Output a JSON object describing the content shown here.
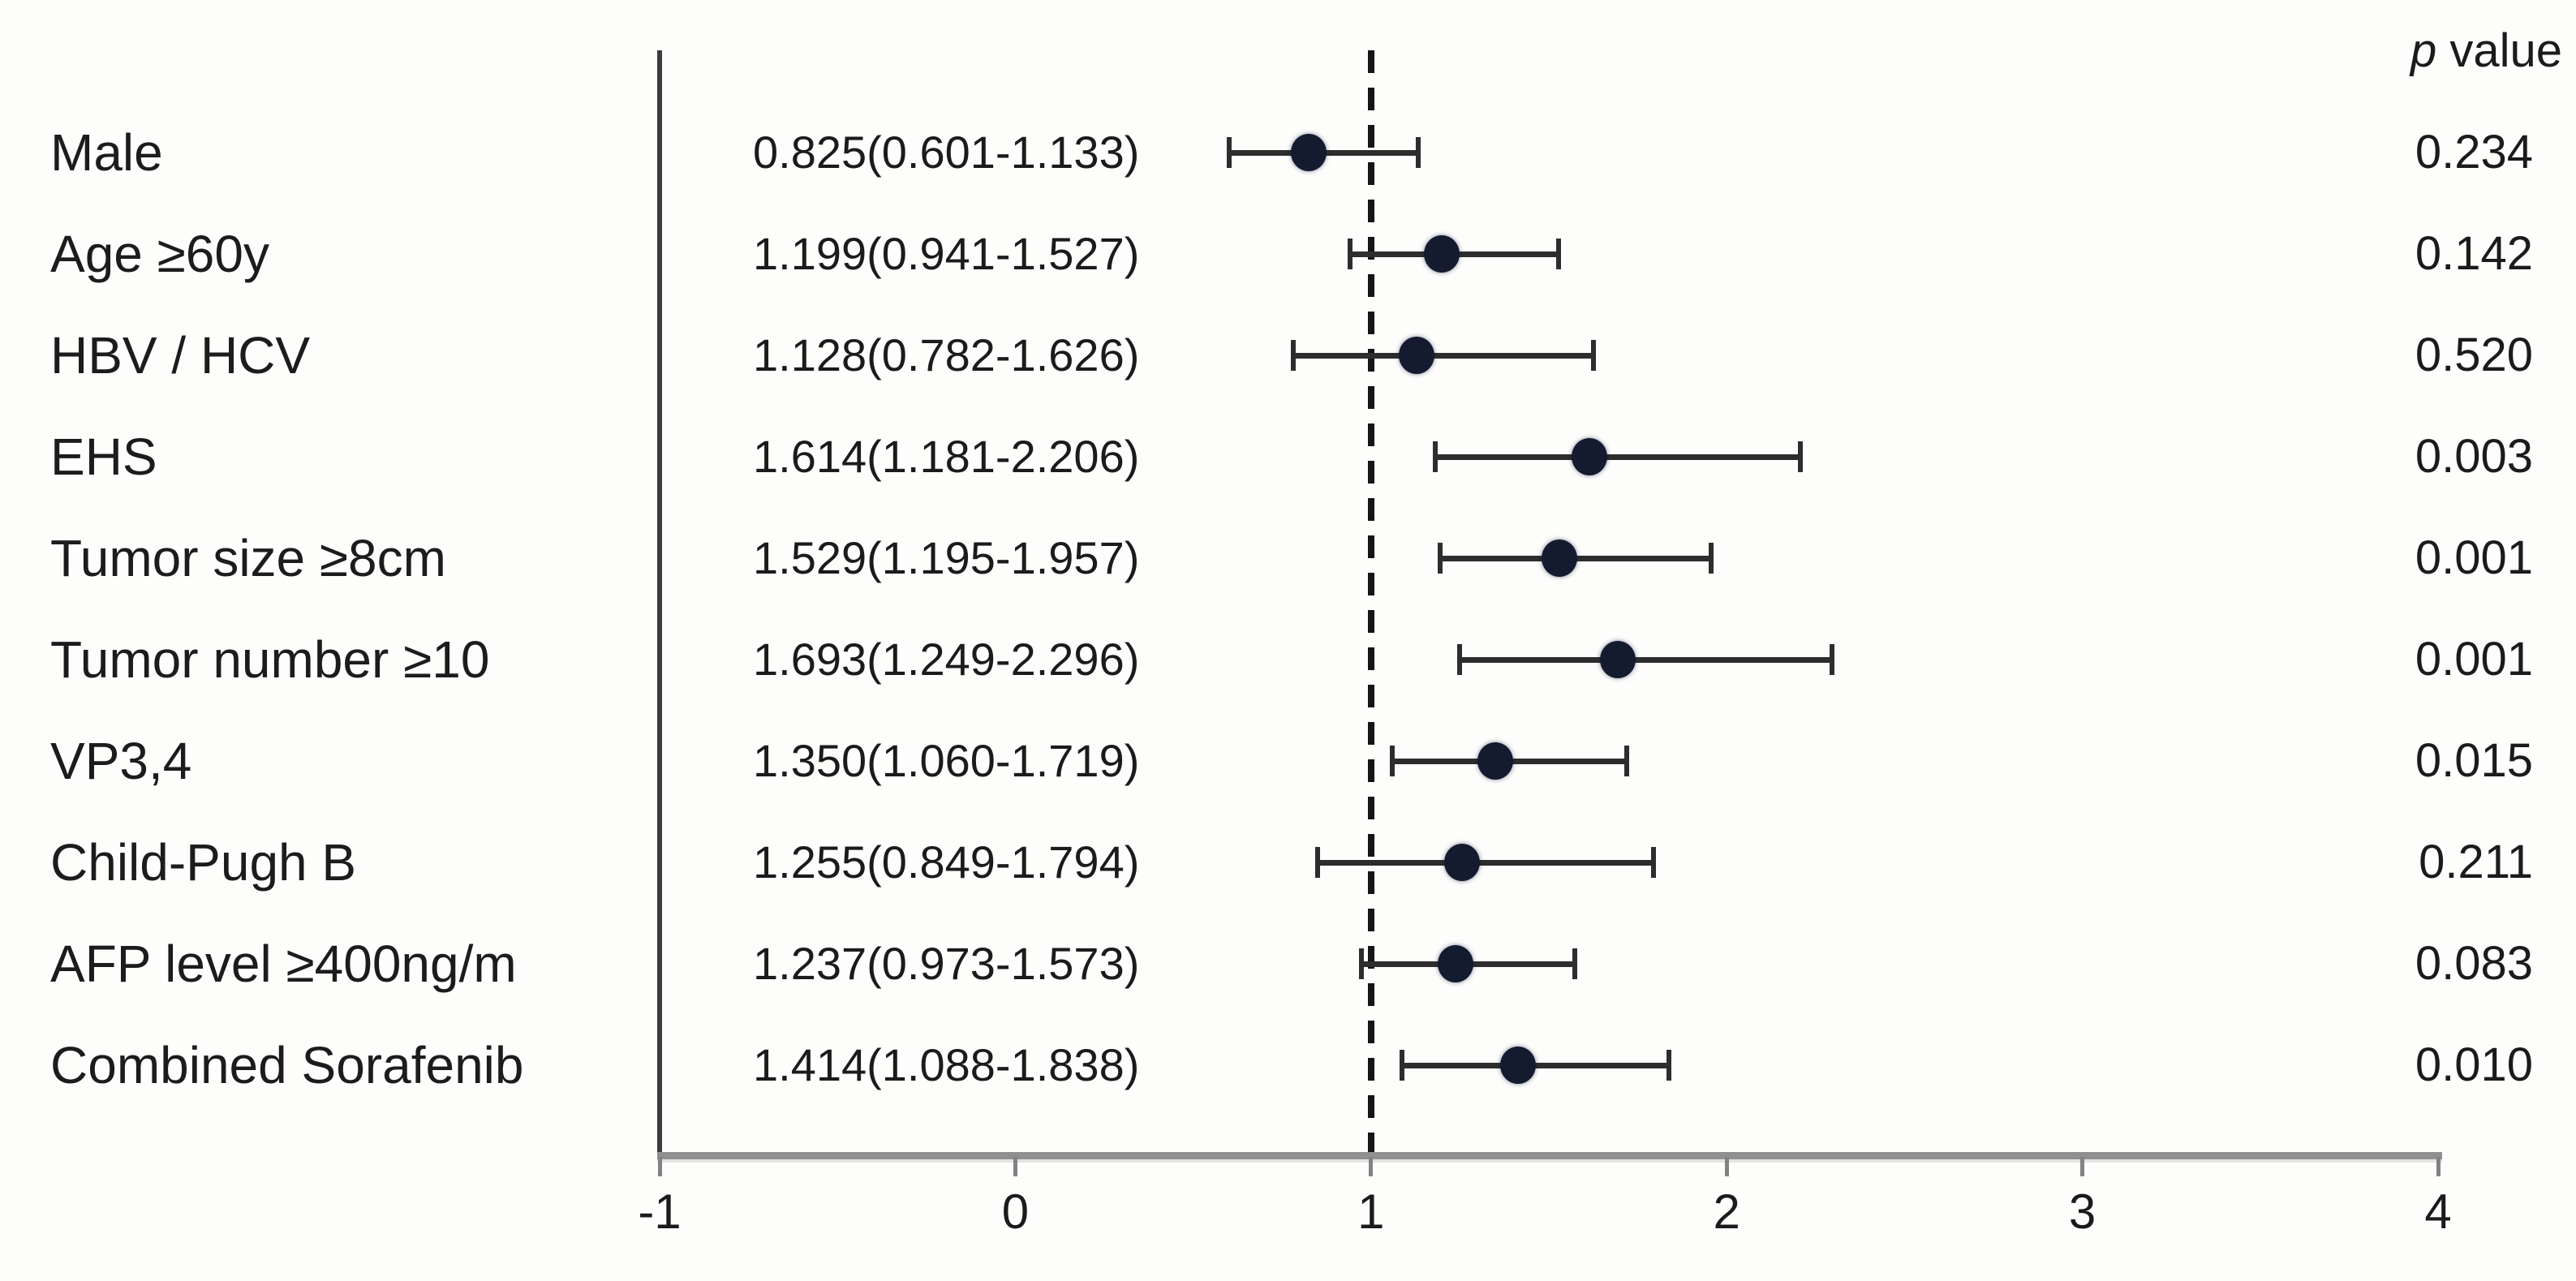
{
  "figure": {
    "background": "#fdfdfc",
    "header_parts": {
      "italic": "p",
      "rest": " value"
    }
  },
  "chart_data": {
    "type": "scatter",
    "variant": "forest-plot",
    "title": "",
    "xlabel": "",
    "ylabel": "",
    "xlim": [
      -1,
      4
    ],
    "grid": false,
    "legend": "none",
    "reference_line_x": 1,
    "p_value_column_header": "p value",
    "x_ticks": [
      {
        "label": "-1",
        "value": -1
      },
      {
        "label": "0",
        "value": 0
      },
      {
        "label": "1",
        "value": 1
      },
      {
        "label": "2",
        "value": 2
      },
      {
        "label": "3",
        "value": 3
      },
      {
        "label": "4",
        "value": 4
      }
    ],
    "rows": [
      {
        "label": "Male",
        "estimate_text": "0.825(0.601-1.133)",
        "estimate": 0.825,
        "ci_low": 0.601,
        "ci_high": 1.133,
        "p_value": "0.234"
      },
      {
        "label": "Age ≥60y",
        "estimate_text": "1.199(0.941-1.527)",
        "estimate": 1.199,
        "ci_low": 0.941,
        "ci_high": 1.527,
        "p_value": "0.142"
      },
      {
        "label": "HBV / HCV",
        "estimate_text": "1.128(0.782-1.626)",
        "estimate": 1.128,
        "ci_low": 0.782,
        "ci_high": 1.626,
        "p_value": "0.520"
      },
      {
        "label": "EHS",
        "estimate_text": "1.614(1.181-2.206)",
        "estimate": 1.614,
        "ci_low": 1.181,
        "ci_high": 2.206,
        "p_value": "0.003"
      },
      {
        "label": "Tumor size ≥8cm",
        "estimate_text": "1.529(1.195-1.957)",
        "estimate": 1.529,
        "ci_low": 1.195,
        "ci_high": 1.957,
        "p_value": "0.001"
      },
      {
        "label": "Tumor number ≥10",
        "estimate_text": "1.693(1.249-2.296)",
        "estimate": 1.693,
        "ci_low": 1.249,
        "ci_high": 2.296,
        "p_value": "0.001"
      },
      {
        "label": "VP3,4",
        "estimate_text": "1.350(1.060-1.719)",
        "estimate": 1.35,
        "ci_low": 1.06,
        "ci_high": 1.719,
        "p_value": "0.015"
      },
      {
        "label": "Child-Pugh B",
        "estimate_text": "1.255(0.849-1.794)",
        "estimate": 1.255,
        "ci_low": 0.849,
        "ci_high": 1.794,
        "p_value": "0.211"
      },
      {
        "label": "AFP level  ≥400ng/m",
        "estimate_text": "1.237(0.973-1.573)",
        "estimate": 1.237,
        "ci_low": 0.973,
        "ci_high": 1.573,
        "p_value": "0.083"
      },
      {
        "label": "Combined Sorafenib",
        "estimate_text": "1.414(1.088-1.838)",
        "estimate": 1.414,
        "ci_low": 1.088,
        "ci_high": 1.838,
        "p_value": "0.010"
      }
    ],
    "colors": {
      "point": "#141b2f",
      "error_bar": "#2d2d2d",
      "axis_line": "#8f8f8f",
      "y_axis_line": "#3c3c3c",
      "tick": "#828282",
      "reference_line": "#151515",
      "text": "#1c1c1c"
    }
  }
}
